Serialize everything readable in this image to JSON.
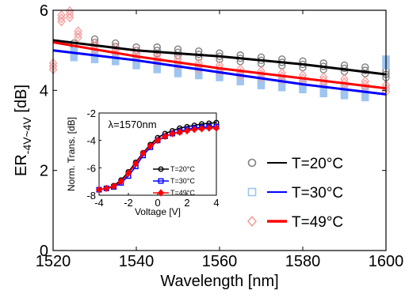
{
  "chart_data": [
    {
      "type": "scatter",
      "title": "",
      "xlabel": "Wavelength [nm]",
      "ylabel": "ER",
      "ylabel_sub": "-4V~4V",
      "ylabel_unit": "[dB]",
      "xlim": [
        1520,
        1600
      ],
      "ylim": [
        0,
        6
      ],
      "xticks": [
        "1520",
        "1540",
        "1560",
        "1580",
        "1600"
      ],
      "yticks": [
        "0",
        "2",
        "4",
        "6"
      ],
      "legend_position": "lower-right",
      "series": [
        {
          "name": "T=20°C",
          "color": "#000000",
          "marker_color": "#7f7f7f",
          "marker": "circle",
          "fit_line": {
            "x": [
              1520,
              1540,
              1560,
              1580,
              1600
            ],
            "y": [
              5.25,
              5.0,
              4.85,
              4.65,
              4.4
            ]
          },
          "points": {
            "x": [
              1525,
              1530,
              1535,
              1540,
              1545,
              1550,
              1555,
              1560,
              1565,
              1570,
              1575,
              1580,
              1585,
              1590,
              1595,
              1600
            ],
            "y": [
              5.1,
              5.2,
              5.1,
              5.0,
              5.0,
              4.95,
              4.9,
              4.85,
              4.8,
              4.75,
              4.7,
              4.65,
              4.6,
              4.55,
              4.5,
              4.4
            ]
          }
        },
        {
          "name": "T=30°C",
          "color": "#0000ff",
          "marker_color": "#9fc5f0",
          "marker": "square",
          "fit_line": {
            "x": [
              1520,
              1540,
              1560,
              1580,
              1600
            ],
            "y": [
              5.0,
              4.75,
              4.45,
              4.15,
              3.9
            ]
          },
          "points": {
            "x": [
              1525,
              1530,
              1535,
              1540,
              1545,
              1550,
              1555,
              1560,
              1565,
              1570,
              1575,
              1580,
              1585,
              1590,
              1595,
              1600
            ],
            "y": [
              4.9,
              4.85,
              4.8,
              4.7,
              4.6,
              4.5,
              4.45,
              4.4,
              4.3,
              4.2,
              4.15,
              4.1,
              4.0,
              3.95,
              3.9,
              4.7
            ]
          }
        },
        {
          "name": "T=49°C",
          "color": "#ff0000",
          "marker_color": "#f4a0a0",
          "marker": "diamond",
          "fit_line": {
            "x": [
              1520,
              1540,
              1560,
              1580,
              1600
            ],
            "y": [
              5.2,
              4.85,
              4.55,
              4.3,
              4.05
            ]
          },
          "points": {
            "x": [
              1520,
              1522,
              1524,
              1526,
              1530,
              1535,
              1540,
              1545,
              1550,
              1555,
              1560,
              1565,
              1570,
              1575,
              1580,
              1585,
              1590,
              1595,
              1600
            ],
            "y": [
              4.6,
              5.8,
              5.9,
              5.4,
              5.1,
              5.0,
              4.9,
              4.8,
              4.7,
              4.6,
              4.55,
              4.45,
              4.4,
              4.35,
              4.3,
              4.25,
              4.2,
              4.15,
              4.05
            ]
          }
        }
      ]
    },
    {
      "type": "line",
      "title": "",
      "annotation": "λ=1570nm",
      "xlabel": "Voltage [V]",
      "ylabel": "Norm. Trans. [dB]",
      "xlim": [
        -4,
        4
      ],
      "ylim": [
        -8,
        -2
      ],
      "xticks": [
        "-4",
        "-2",
        "0",
        "2",
        "4"
      ],
      "yticks": [
        "-8",
        "-6",
        "-4",
        "-2"
      ],
      "legend_position": "bottom-right",
      "x": [
        -4,
        -3.5,
        -3,
        -2.5,
        -2,
        -1.5,
        -1,
        -0.5,
        0,
        0.5,
        1,
        1.5,
        2,
        2.5,
        3,
        3.5,
        4
      ],
      "series": [
        {
          "name": "T=20°C",
          "color": "#000000",
          "marker": "circle",
          "values": [
            -7.6,
            -7.5,
            -7.3,
            -6.9,
            -6.3,
            -5.6,
            -4.9,
            -4.3,
            -3.8,
            -3.5,
            -3.3,
            -3.1,
            -3.0,
            -2.9,
            -2.8,
            -2.75,
            -2.7
          ]
        },
        {
          "name": "T=30°C",
          "color": "#0000ff",
          "marker": "square",
          "values": [
            -7.6,
            -7.5,
            -7.4,
            -7.1,
            -6.6,
            -5.9,
            -5.1,
            -4.5,
            -4.0,
            -3.7,
            -3.5,
            -3.35,
            -3.2,
            -3.1,
            -3.05,
            -3.0,
            -3.0
          ]
        },
        {
          "name": "T=49°C",
          "color": "#ff0000",
          "marker": "diamond",
          "values": [
            -7.6,
            -7.5,
            -7.35,
            -7.0,
            -6.4,
            -5.7,
            -4.95,
            -4.4,
            -4.0,
            -3.7,
            -3.5,
            -3.4,
            -3.3,
            -3.2,
            -3.15,
            -3.1,
            -3.1
          ]
        }
      ]
    }
  ]
}
